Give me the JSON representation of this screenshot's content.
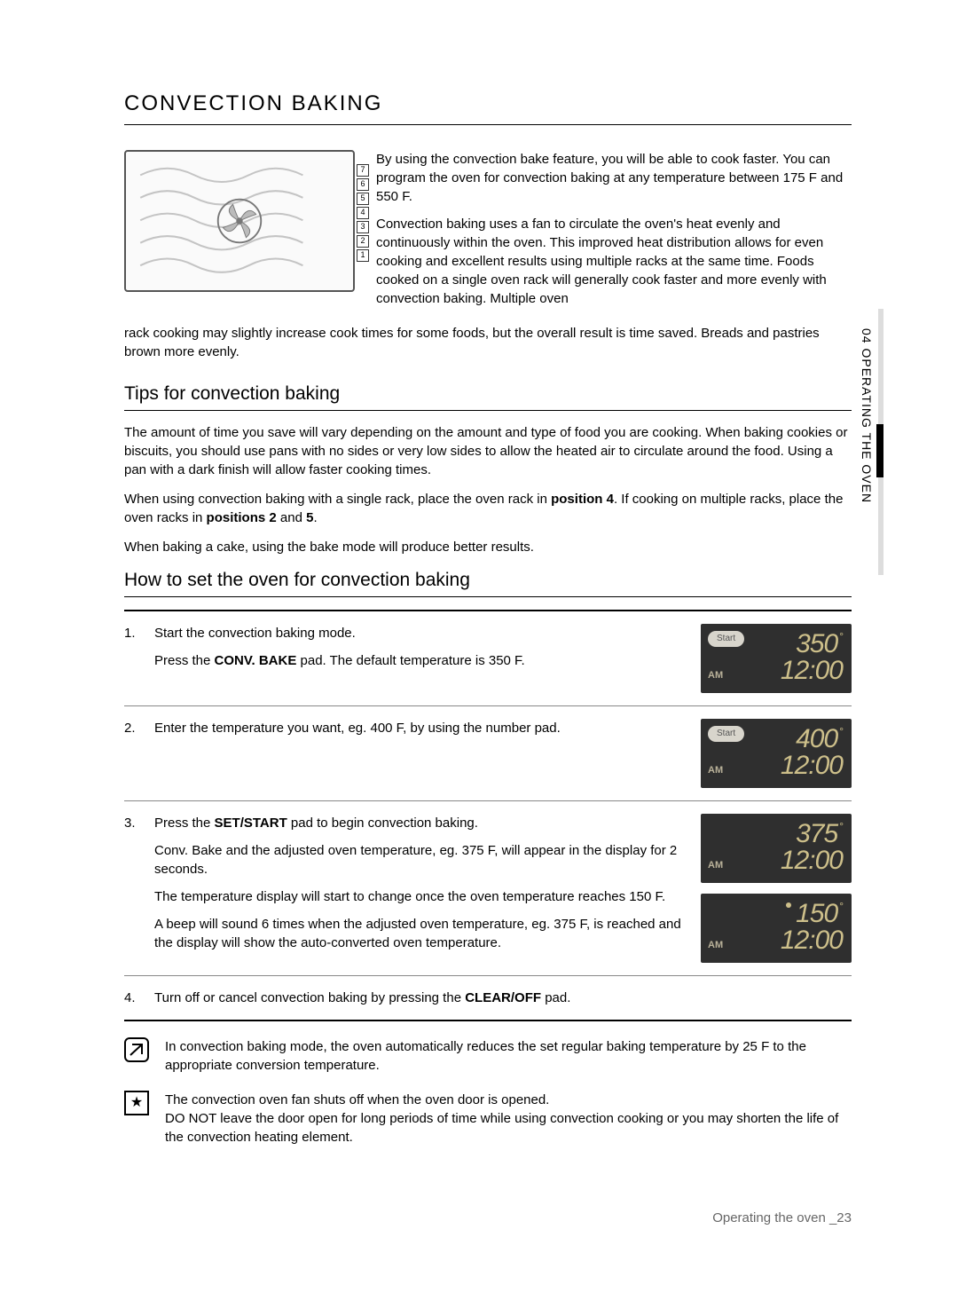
{
  "colors": {
    "text": "#000000",
    "lcd_bg": "#2f2f2f",
    "lcd_text": "#cdbf8a",
    "lcd_label": "#b9b199",
    "pill_bg": "#d8d5cc"
  },
  "side_tab": "04 OPERATING THE OVEN",
  "title": "CONVECTION BAKING",
  "racks": [
    "7",
    "6",
    "5",
    "4",
    "3",
    "2",
    "1"
  ],
  "intro_p1": "By using the convection bake feature, you will be able to cook faster. You can program the oven for convection baking at any temperature between 175 F and 550 F.",
  "intro_p2": "Convection baking uses a fan to circulate the oven's heat evenly and continuously within the oven. This improved heat distribution allows for even cooking and excellent results using multiple racks at the same time. Foods cooked on a single oven rack will generally cook faster and more evenly with convection baking. Multiple oven",
  "intro_continuation": "rack cooking may slightly increase cook times for some foods, but the overall result is time saved. Breads and pastries brown more evenly.",
  "tips_heading": "Tips for convection baking",
  "tips_p1": "The amount of time you save will vary depending on the amount and type of food you are cooking. When baking cookies or biscuits, you should use pans with no sides or very low sides to allow the heated air to circulate around the food. Using a pan with a dark finish will allow faster cooking times.",
  "tips_p2_a": "When using convection baking with a single rack, place the oven rack in ",
  "tips_p2_pos1": "position 4",
  "tips_p2_b": ". If cooking on multiple racks, place the oven racks in ",
  "tips_p2_pos2": "positions 2",
  "tips_p2_c": " and ",
  "tips_p2_pos3": "5",
  "tips_p2_d": ".",
  "tips_p3": "When baking a cake, using the bake mode will produce better results.",
  "howto_heading": "How to set the oven for convection baking",
  "steps": [
    {
      "num": "1.",
      "lines": [
        "Start the convection baking mode.",
        "Press the CONV. BAKE pad. The default temperature is 350 F."
      ],
      "displays": [
        {
          "start": true,
          "am": "AM",
          "temp": "350",
          "deg": "°",
          "clock": "12:00",
          "dot": false
        }
      ]
    },
    {
      "num": "2.",
      "lines": [
        "Enter the temperature you want, eg. 400 F, by using the number pad."
      ],
      "displays": [
        {
          "start": true,
          "am": "AM",
          "temp": "400",
          "deg": "°",
          "clock": "12:00",
          "dot": false
        }
      ]
    },
    {
      "num": "3.",
      "lines": [
        "Press the SET/START pad to begin convection baking.",
        "Conv. Bake and the adjusted oven temperature, eg. 375 F, will appear in the display for 2 seconds.",
        "The temperature display will start to change once the oven temperature reaches 150 F.",
        "A beep will sound 6 times when the adjusted oven temperature, eg. 375 F, is reached and the display will show the auto-converted oven temperature."
      ],
      "displays": [
        {
          "start": false,
          "am": "AM",
          "temp": "375",
          "deg": "°",
          "clock": "12:00",
          "dot": false
        },
        {
          "start": false,
          "am": "AM",
          "temp": "150",
          "deg": "°",
          "clock": "12:00",
          "dot": true
        }
      ]
    },
    {
      "num": "4.",
      "lines": [
        "Turn off or cancel convection baking by pressing the CLEAR/OFF pad."
      ],
      "displays": []
    }
  ],
  "note1": "In convection baking mode, the oven automatically reduces the set regular baking temperature by 25 F to the appropriate conversion temperature.",
  "note2": "The convection oven fan shuts off when the oven door is opened.\nDO NOT leave the door open for long periods of time while using convection cooking or you may shorten the life of the convection heating element.",
  "footer": "Operating the oven _23",
  "labels": {
    "start": "Start"
  }
}
